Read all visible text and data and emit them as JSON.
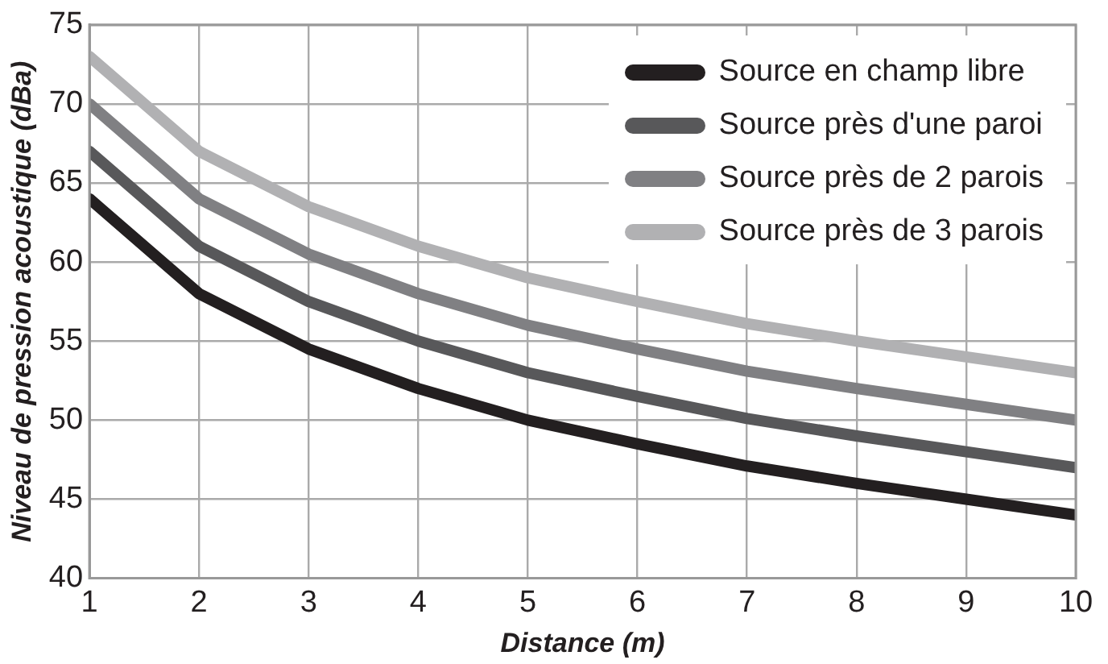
{
  "chart_data": {
    "type": "line",
    "xlabel": "Distance (m)",
    "ylabel": "Niveau de pression acoustique (dBa)",
    "x": [
      1,
      2,
      3,
      4,
      5,
      6,
      7,
      8,
      9,
      10
    ],
    "series": [
      {
        "name": "Source en champ libre",
        "color": "#231f20",
        "values": [
          64,
          58,
          54.5,
          52,
          50,
          48.5,
          47.1,
          46,
          45,
          44
        ]
      },
      {
        "name": "Source près d'une paroi",
        "color": "#58585a",
        "values": [
          67,
          61,
          57.5,
          55,
          53,
          51.5,
          50.1,
          49,
          48,
          47
        ]
      },
      {
        "name": "Source près de 2 parois",
        "color": "#808083",
        "values": [
          70,
          64,
          60.5,
          58,
          56,
          54.5,
          53.1,
          52,
          51,
          50
        ]
      },
      {
        "name": "Source près de 3 parois",
        "color": "#b1b1b3",
        "values": [
          73,
          67,
          63.5,
          61,
          59,
          57.5,
          56.1,
          55,
          54,
          53
        ]
      }
    ],
    "xlim": [
      1,
      10
    ],
    "xticks": [
      1,
      2,
      3,
      4,
      5,
      6,
      7,
      8,
      9,
      10
    ],
    "ylim": [
      40,
      75
    ],
    "yticks": [
      40,
      45,
      50,
      55,
      60,
      65,
      70,
      75
    ],
    "grid": true,
    "legend": "top right",
    "marker": "none",
    "line_style": "solid"
  }
}
